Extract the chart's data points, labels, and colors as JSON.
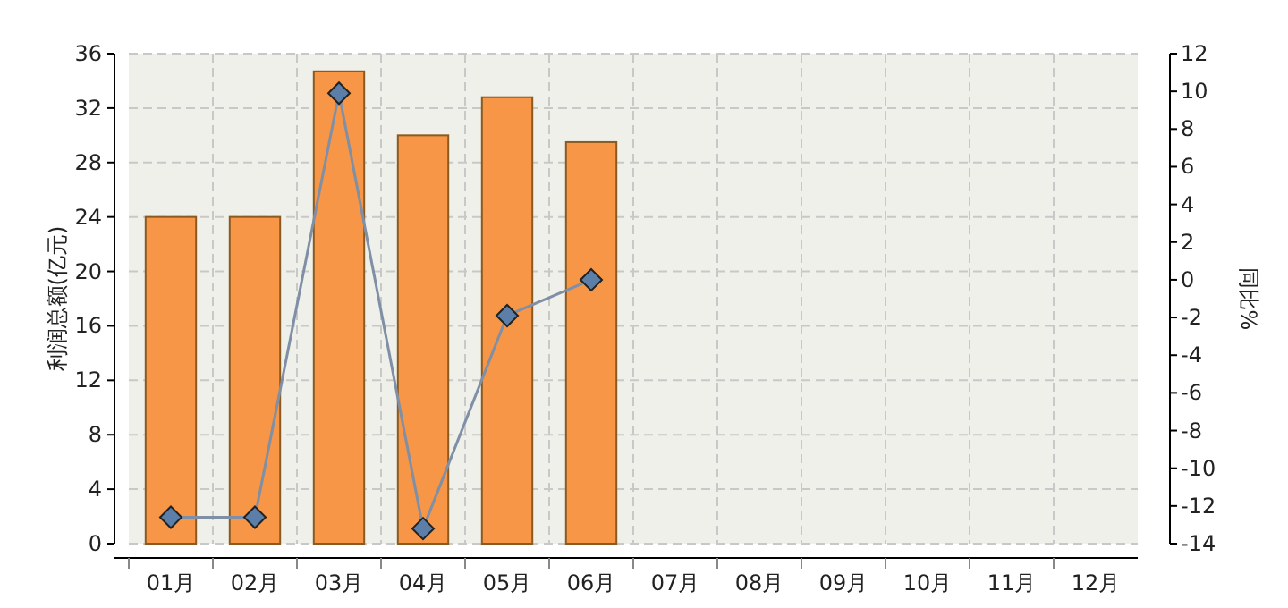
{
  "chart_data": {
    "type": "bar",
    "ylabel": "利润总额(亿元)",
    "y2label": "同比%",
    "categories": [
      "01月",
      "02月",
      "03月",
      "04月",
      "05月",
      "06月",
      "07月",
      "08月",
      "09月",
      "10月",
      "11月",
      "12月"
    ],
    "series": [
      {
        "color": "#f79646",
        "values": [
          24.0,
          24.0,
          34.7,
          30.0,
          32.8,
          29.5,
          null,
          null,
          null,
          null,
          null,
          null
        ]
      },
      {
        "type": "line",
        "axis": "y2",
        "color": "#7f8fa6",
        "marker": "diamond",
        "values": [
          -12.6,
          -12.6,
          9.9,
          -13.2,
          -1.9,
          0.0,
          null,
          null,
          null,
          null,
          null,
          null
        ]
      }
    ],
    "ylim": [
      0,
      36
    ],
    "yticks": [
      0,
      4,
      8,
      12,
      16,
      20,
      24,
      28,
      32,
      36
    ],
    "y2lim": [
      -14,
      12
    ],
    "y2ticks": [
      -14,
      -12,
      -10,
      -8,
      -6,
      -4,
      -2,
      0,
      2,
      4,
      6,
      8,
      10,
      12
    ],
    "grid": true
  }
}
